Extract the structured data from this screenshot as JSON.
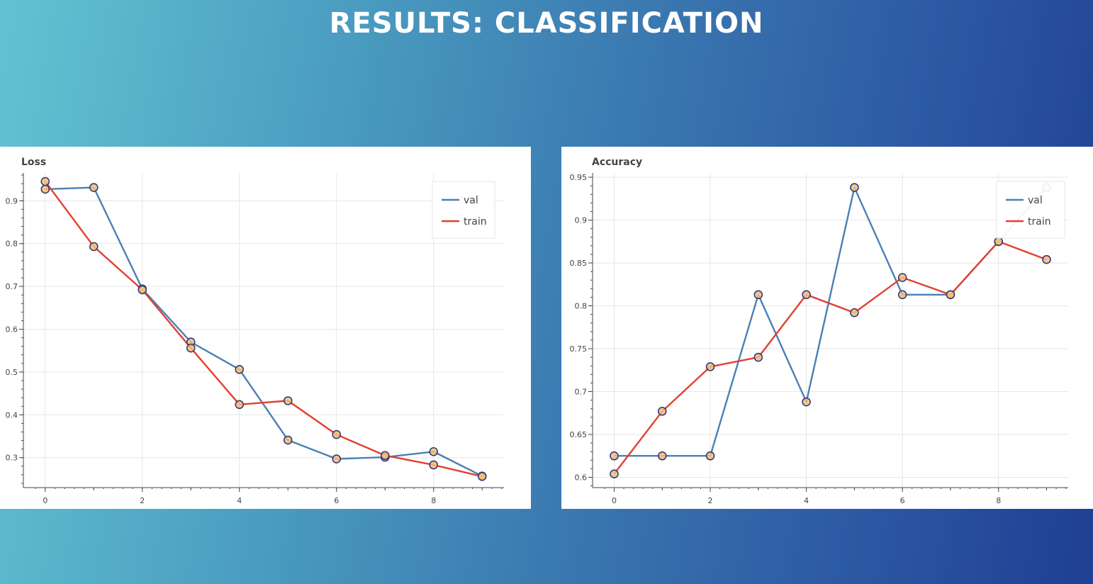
{
  "slide": {
    "title": "RESULTS: CLASSIFICATION"
  },
  "colors": {
    "val": "#4a80b5",
    "train": "#e2402f",
    "marker_fill": "#f0c07a",
    "marker_stroke": "#3a3a7a",
    "grid": "#e6e6e6"
  },
  "chart_data": [
    {
      "type": "line",
      "title": "Loss",
      "x": [
        0,
        1,
        2,
        3,
        4,
        5,
        6,
        7,
        8,
        9
      ],
      "xticks": [
        0,
        2,
        4,
        6,
        8
      ],
      "xticks_minor": [
        1,
        3,
        5,
        7,
        9
      ],
      "yticks": [
        0.3,
        0.4,
        0.5,
        0.6,
        0.7,
        0.8,
        0.9
      ],
      "ytick_labels": [
        "0.3",
        "0.4",
        "0.5",
        "0.6",
        "0.7",
        "0.8",
        "0.9"
      ],
      "xlim": [
        -0.45,
        9.45
      ],
      "ylim": [
        0.23,
        0.965
      ],
      "grid": true,
      "legend_position": "top-right",
      "series": [
        {
          "name": "val",
          "values": [
            0.927,
            0.931,
            0.694,
            0.57,
            0.506,
            0.341,
            0.297,
            0.301,
            0.314,
            0.257
          ]
        },
        {
          "name": "train",
          "values": [
            0.945,
            0.793,
            0.692,
            0.556,
            0.424,
            0.433,
            0.354,
            0.305,
            0.283,
            0.256
          ]
        }
      ]
    },
    {
      "type": "line",
      "title": "Accuracy",
      "x": [
        0,
        1,
        2,
        3,
        4,
        5,
        6,
        7,
        8,
        9
      ],
      "xticks": [
        0,
        2,
        4,
        6,
        8
      ],
      "xticks_minor": [
        1,
        3,
        5,
        7,
        9
      ],
      "yticks": [
        0.6,
        0.65,
        0.7,
        0.75,
        0.8,
        0.85,
        0.9,
        0.95
      ],
      "ytick_labels": [
        "0.6",
        "0.65",
        "0.7",
        "0.75",
        "0.8",
        "0.85",
        "0.9",
        "0.95"
      ],
      "xlim": [
        -0.45,
        9.45
      ],
      "ylim": [
        0.588,
        0.955
      ],
      "grid": true,
      "legend_position": "top-right",
      "series": [
        {
          "name": "val",
          "values": [
            0.625,
            0.625,
            0.625,
            0.813,
            0.688,
            0.938,
            0.813,
            0.813,
            0.875,
            0.938
          ]
        },
        {
          "name": "train",
          "values": [
            0.604,
            0.677,
            0.729,
            0.74,
            0.813,
            0.792,
            0.833,
            0.813,
            0.875,
            0.854
          ]
        }
      ]
    }
  ]
}
